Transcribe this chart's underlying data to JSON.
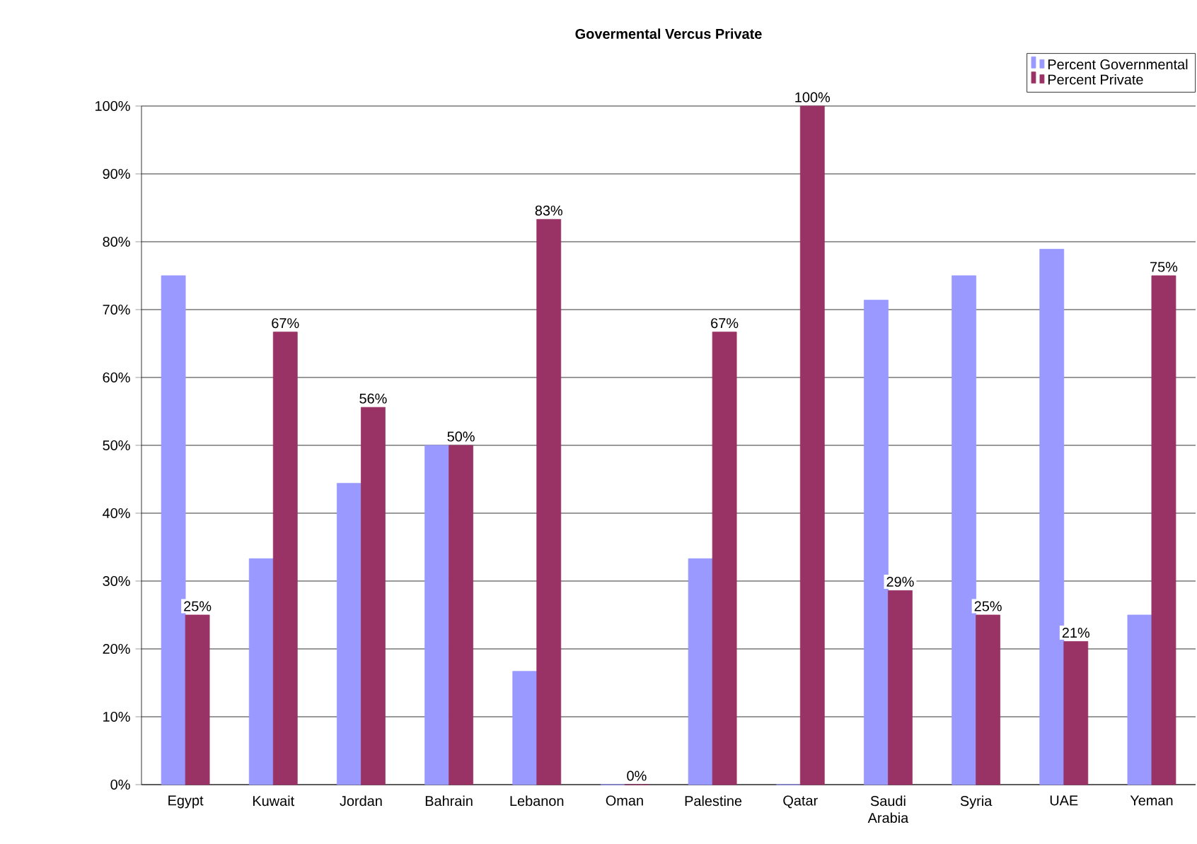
{
  "chart_data": {
    "type": "bar",
    "title": "Govermental Vercus Private",
    "categories": [
      "Egypt",
      "Kuwait",
      "Jordan",
      "Bahrain",
      "Lebanon",
      "Oman",
      "Palestine",
      "Qatar",
      "Saudi Arabia",
      "Syria",
      "UAE",
      "Yeman"
    ],
    "series": [
      {
        "name": "Percent Governmental",
        "color": "#9999ff",
        "values": [
          75,
          33.3,
          44.4,
          50,
          16.7,
          0,
          33.3,
          0,
          71.4,
          75,
          78.9,
          25
        ]
      },
      {
        "name": "Percent Private",
        "color": "#993366",
        "values": [
          25,
          66.7,
          55.6,
          50,
          83.3,
          0,
          66.7,
          100,
          28.6,
          25,
          21.1,
          75
        ],
        "value_labels": [
          "25%",
          "67%",
          "56%",
          "50%",
          "83%",
          "0%",
          "67%",
          "100%",
          "29%",
          "25%",
          "21%",
          "75%"
        ]
      }
    ],
    "ylim": [
      0,
      100
    ],
    "yticks": [
      {
        "value": 0,
        "label": "0%"
      },
      {
        "value": 10,
        "label": "10%"
      },
      {
        "value": 20,
        "label": "20%"
      },
      {
        "value": 30,
        "label": "30%"
      },
      {
        "value": 40,
        "label": "40%"
      },
      {
        "value": 50,
        "label": "50%"
      },
      {
        "value": 60,
        "label": "60%"
      },
      {
        "value": 70,
        "label": "70%"
      },
      {
        "value": 80,
        "label": "80%"
      },
      {
        "value": 90,
        "label": "90%"
      },
      {
        "value": 100,
        "label": "100%"
      }
    ],
    "grid": "y",
    "legend": "top right"
  }
}
